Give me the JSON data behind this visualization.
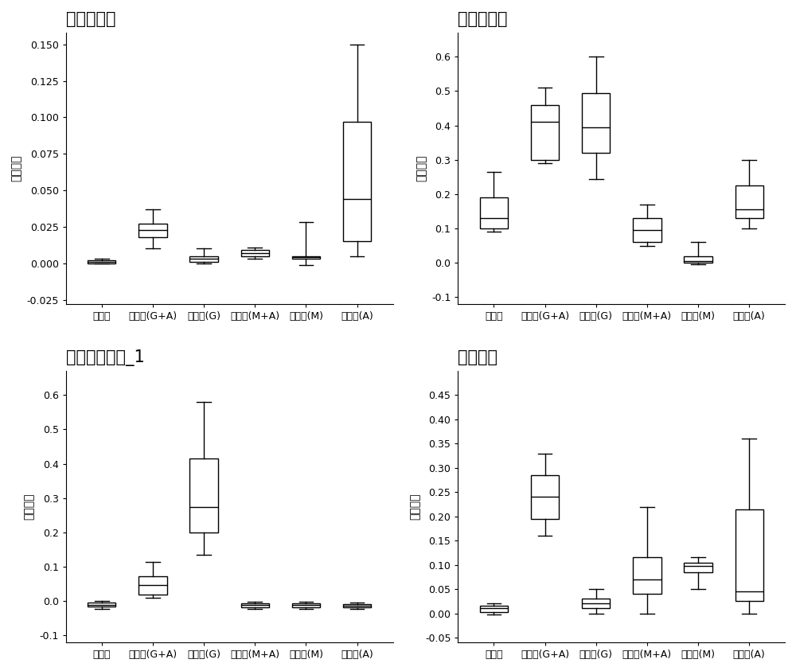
{
  "ylabel": "序列比例",
  "categories": [
    "空白组",
    "合生元(G+A)",
    "合生元(G)",
    "合生元(M+A)",
    "合生元(M)",
    "合生元(A)"
  ],
  "plots": [
    {
      "title": "艾克曼菌属",
      "ylim": [
        -0.028,
        0.158
      ],
      "yticks": [
        -0.025,
        0.0,
        0.025,
        0.05,
        0.075,
        0.1,
        0.125,
        0.15
      ],
      "ytick_labels": [
        "-0.025",
        "0.000",
        "0.025",
        "0.050",
        "0.075",
        "0.100",
        "0.125",
        "0.150"
      ],
      "boxes": [
        {
          "whislo": 0.0,
          "q1": 0.0,
          "med": 0.001,
          "q3": 0.002,
          "whishi": 0.003
        },
        {
          "whislo": 0.01,
          "q1": 0.018,
          "med": 0.023,
          "q3": 0.027,
          "whishi": 0.037
        },
        {
          "whislo": 0.0,
          "q1": 0.001,
          "med": 0.003,
          "q3": 0.005,
          "whishi": 0.01
        },
        {
          "whislo": 0.003,
          "q1": 0.005,
          "med": 0.007,
          "q3": 0.009,
          "whishi": 0.011
        },
        {
          "whislo": -0.001,
          "q1": 0.003,
          "med": 0.004,
          "q3": 0.005,
          "whishi": 0.028
        },
        {
          "whislo": 0.005,
          "q1": 0.015,
          "med": 0.044,
          "q3": 0.097,
          "whishi": 0.15
        }
      ]
    },
    {
      "title": "双歧杆菌科",
      "ylim": [
        -0.12,
        0.67
      ],
      "yticks": [
        -0.1,
        0.0,
        0.1,
        0.2,
        0.3,
        0.4,
        0.5,
        0.6
      ],
      "ytick_labels": [
        "-0.1",
        "0.0",
        "0.1",
        "0.2",
        "0.3",
        "0.4",
        "0.5",
        "0.6"
      ],
      "boxes": [
        {
          "whislo": 0.09,
          "q1": 0.1,
          "med": 0.13,
          "q3": 0.19,
          "whishi": 0.265
        },
        {
          "whislo": 0.29,
          "q1": 0.3,
          "med": 0.41,
          "q3": 0.46,
          "whishi": 0.51
        },
        {
          "whislo": 0.245,
          "q1": 0.32,
          "med": 0.395,
          "q3": 0.495,
          "whishi": 0.6
        },
        {
          "whislo": 0.05,
          "q1": 0.06,
          "med": 0.095,
          "q3": 0.13,
          "whishi": 0.17
        },
        {
          "whislo": -0.005,
          "q1": 0.0,
          "med": 0.005,
          "q3": 0.02,
          "whishi": 0.06
        },
        {
          "whislo": 0.1,
          "q1": 0.13,
          "med": 0.155,
          "q3": 0.225,
          "whishi": 0.3
        }
      ]
    },
    {
      "title": "产丁酸梭菌科_1",
      "ylim": [
        -0.12,
        0.67
      ],
      "yticks": [
        -0.1,
        0.0,
        0.1,
        0.2,
        0.3,
        0.4,
        0.5,
        0.6
      ],
      "ytick_labels": [
        "-0.1",
        "0.0",
        "0.1",
        "0.2",
        "0.3",
        "0.4",
        "0.5",
        "0.6"
      ],
      "boxes": [
        {
          "whislo": -0.022,
          "q1": -0.015,
          "med": -0.01,
          "q3": -0.005,
          "whishi": 0.0
        },
        {
          "whislo": 0.01,
          "q1": 0.02,
          "med": 0.048,
          "q3": 0.073,
          "whishi": 0.115
        },
        {
          "whislo": 0.135,
          "q1": 0.2,
          "med": 0.275,
          "q3": 0.415,
          "whishi": 0.58
        },
        {
          "whislo": -0.022,
          "q1": -0.017,
          "med": -0.012,
          "q3": -0.007,
          "whishi": -0.002
        },
        {
          "whislo": -0.022,
          "q1": -0.017,
          "med": -0.012,
          "q3": -0.007,
          "whishi": -0.002
        },
        {
          "whislo": -0.022,
          "q1": -0.017,
          "med": -0.013,
          "q3": -0.009,
          "whishi": -0.005
        }
      ]
    },
    {
      "title": "乳杆菌科",
      "ylim": [
        -0.06,
        0.5
      ],
      "yticks": [
        -0.05,
        0.0,
        0.05,
        0.1,
        0.15,
        0.2,
        0.25,
        0.3,
        0.35,
        0.4,
        0.45
      ],
      "ytick_labels": [
        "-0.05",
        "0.00",
        "0.05",
        "0.10",
        "0.15",
        "0.20",
        "0.25",
        "0.30",
        "0.35",
        "0.40",
        "0.45"
      ],
      "boxes": [
        {
          "whislo": -0.003,
          "q1": 0.002,
          "med": 0.01,
          "q3": 0.015,
          "whishi": 0.02
        },
        {
          "whislo": 0.16,
          "q1": 0.195,
          "med": 0.24,
          "q3": 0.285,
          "whishi": 0.33
        },
        {
          "whislo": 0.0,
          "q1": 0.01,
          "med": 0.02,
          "q3": 0.03,
          "whishi": 0.05
        },
        {
          "whislo": 0.0,
          "q1": 0.04,
          "med": 0.07,
          "q3": 0.115,
          "whishi": 0.22
        },
        {
          "whislo": 0.05,
          "q1": 0.085,
          "med": 0.097,
          "q3": 0.105,
          "whishi": 0.115
        },
        {
          "whislo": 0.0,
          "q1": 0.025,
          "med": 0.045,
          "q3": 0.215,
          "whishi": 0.36
        }
      ]
    }
  ],
  "box_width": 0.55,
  "linewidth": 1.0,
  "title_fontsize": 15,
  "label_fontsize": 10,
  "tick_fontsize": 9,
  "fig_bg": "#ffffff",
  "box_facecolor": "#ffffff",
  "box_edgecolor": "#000000",
  "median_color": "#000000",
  "whisker_color": "#000000",
  "cap_color": "#000000"
}
